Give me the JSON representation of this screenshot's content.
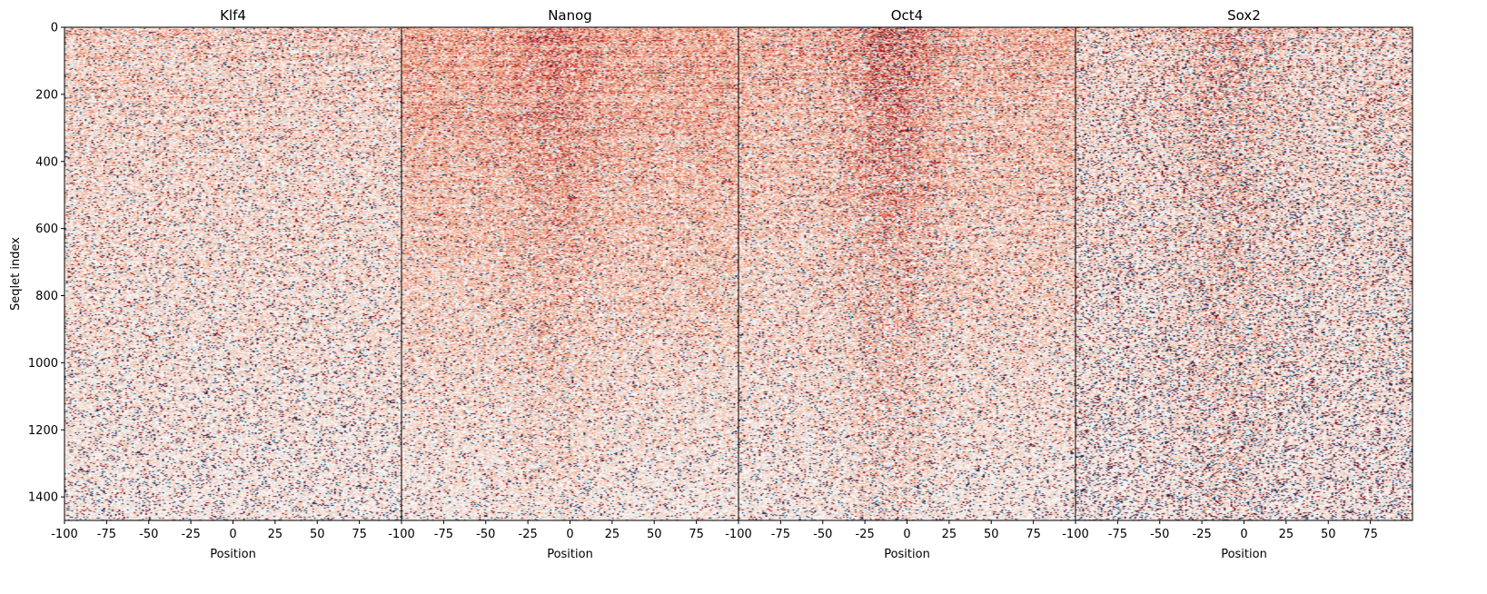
{
  "chart_data": {
    "type": "heatmap",
    "ylabel": "Seqlet index",
    "xlabel": "Position",
    "panels": [
      {
        "title": "Klf4"
      },
      {
        "title": "Nanog"
      },
      {
        "title": "Oct4"
      },
      {
        "title": "Sox2"
      }
    ],
    "x_range": [
      -100,
      100
    ],
    "x_ticks": [
      -100,
      -75,
      -50,
      -25,
      0,
      25,
      50,
      75
    ],
    "x_tick_labels": [
      "-100",
      "-75",
      "-50",
      "-25",
      "0",
      "25",
      "50",
      "75"
    ],
    "y_range": [
      0,
      1470
    ],
    "y_ticks": [
      0,
      200,
      400,
      600,
      800,
      1000,
      1200,
      1400
    ],
    "y_tick_labels": [
      "0",
      "200",
      "400",
      "600",
      "800",
      "1000",
      "1200",
      "1400"
    ],
    "y_inverted": true,
    "colormap": "diverging red-blue",
    "colors": {
      "positive": "#b2182b",
      "negative": "#2166ac",
      "neutral": "#f7f7f7",
      "frame": "#000000"
    }
  }
}
